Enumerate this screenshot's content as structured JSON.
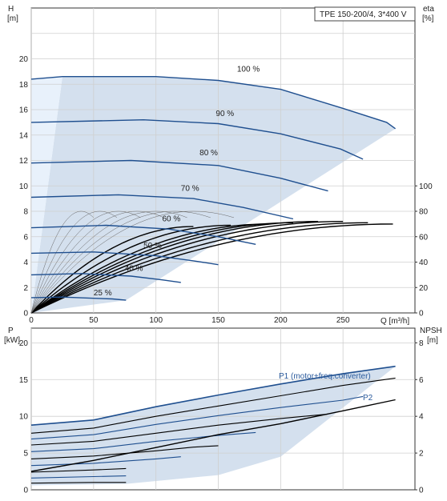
{
  "chart_data": [
    {
      "type": "line",
      "title": "TPE 150-200/4, 3*400 V",
      "xlabel": "Q [m³/h]",
      "ylabel_left": "H\n[m]",
      "ylabel_right": "eta\n[%]",
      "xlim": [
        0,
        300
      ],
      "ylim_left": [
        0,
        24
      ],
      "ylim_right_ticks": [
        0,
        20,
        40,
        60,
        80,
        100
      ],
      "x_ticks": [
        "0",
        "50",
        "100",
        "150",
        "200",
        "250"
      ],
      "y_ticks_left": [
        "0",
        "2",
        "4",
        "6",
        "8",
        "10",
        "12",
        "14",
        "16",
        "18",
        "20"
      ],
      "grid": true,
      "speed_curves": [
        {
          "label": "100 %",
          "points": [
            [
              0,
              18.4
            ],
            [
              25,
              18.6
            ],
            [
              100,
              18.6
            ],
            [
              150,
              18.3
            ],
            [
              200,
              17.6
            ],
            [
              250,
              16.1
            ],
            [
              285,
              15.0
            ],
            [
              292,
              14.5
            ]
          ]
        },
        {
          "label": "90 %",
          "points": [
            [
              0,
              15.0
            ],
            [
              90,
              15.2
            ],
            [
              150,
              14.9
            ],
            [
              200,
              14.1
            ],
            [
              248,
              12.9
            ],
            [
              266,
              12.1
            ]
          ]
        },
        {
          "label": "80 %",
          "points": [
            [
              0,
              11.8
            ],
            [
              80,
              12.0
            ],
            [
              150,
              11.6
            ],
            [
              200,
              10.6
            ],
            [
              238,
              9.6
            ]
          ]
        },
        {
          "label": "70 %",
          "points": [
            [
              0,
              9.1
            ],
            [
              70,
              9.3
            ],
            [
              130,
              9.0
            ],
            [
              170,
              8.3
            ],
            [
              210,
              7.4
            ]
          ]
        },
        {
          "label": "60 %",
          "points": [
            [
              0,
              6.7
            ],
            [
              60,
              6.9
            ],
            [
              110,
              6.6
            ],
            [
              150,
              6.0
            ],
            [
              180,
              5.4
            ]
          ]
        },
        {
          "label": "50 %",
          "points": [
            [
              0,
              4.7
            ],
            [
              50,
              4.8
            ],
            [
              100,
              4.5
            ],
            [
              130,
              4.1
            ],
            [
              150,
              3.8
            ]
          ]
        },
        {
          "label": "40 %",
          "points": [
            [
              0,
              3.0
            ],
            [
              40,
              3.1
            ],
            [
              80,
              2.9
            ],
            [
              105,
              2.6
            ],
            [
              120,
              2.4
            ]
          ]
        },
        {
          "label": "25 %",
          "points": [
            [
              0,
              1.2
            ],
            [
              25,
              1.25
            ],
            [
              50,
              1.15
            ],
            [
              65,
              1.1
            ],
            [
              76,
              1.0
            ]
          ]
        }
      ],
      "efficiency_curves_eta_percent": [
        {
          "peak_q": 290,
          "peak_eta": 70
        },
        {
          "peak_q": 270,
          "peak_eta": 71
        },
        {
          "peak_q": 250,
          "peak_eta": 72
        },
        {
          "peak_q": 230,
          "peak_eta": 72
        },
        {
          "peak_q": 210,
          "peak_eta": 71
        },
        {
          "peak_q": 190,
          "peak_eta": 70
        },
        {
          "peak_q": 160,
          "peak_eta": 69
        },
        {
          "peak_q": 130,
          "peak_eta": 68
        }
      ]
    },
    {
      "type": "line",
      "xlabel": "",
      "ylabel_left": "P\n[kW]",
      "ylabel_right": "NPSH\n[m]",
      "xlim": [
        0,
        300
      ],
      "ylim_left": [
        0,
        22
      ],
      "y_ticks_left": [
        "0",
        "5",
        "10",
        "15",
        "20"
      ],
      "y_ticks_right": [
        "0",
        "2",
        "4",
        "6",
        "8"
      ],
      "grid": true,
      "series_labels": [
        "P1 (motor+freq.converter)",
        "P2"
      ],
      "power_curves": [
        {
          "points": [
            [
              0,
              8.8
            ],
            [
              50,
              9.5
            ],
            [
              100,
              11.3
            ],
            [
              150,
              12.9
            ],
            [
              200,
              14.4
            ],
            [
              250,
              15.8
            ],
            [
              292,
              16.8
            ]
          ]
        },
        {
          "points": [
            [
              0,
              7.7
            ],
            [
              50,
              8.4
            ],
            [
              100,
              10.0
            ],
            [
              150,
              11.4
            ],
            [
              200,
              12.8
            ],
            [
              250,
              14.2
            ],
            [
              292,
              15.2
            ]
          ]
        },
        {
          "points": [
            [
              0,
              6.9
            ],
            [
              50,
              7.5
            ],
            [
              100,
              8.9
            ],
            [
              150,
              10.1
            ],
            [
              200,
              11.2
            ],
            [
              250,
              12.2
            ],
            [
              266,
              12.7
            ]
          ]
        },
        {
          "points": [
            [
              0,
              6.1
            ],
            [
              50,
              6.6
            ],
            [
              100,
              7.7
            ],
            [
              150,
              8.8
            ],
            [
              200,
              9.7
            ],
            [
              238,
              10.3
            ]
          ]
        },
        {
          "points": [
            [
              0,
              5.2
            ],
            [
              50,
              5.6
            ],
            [
              100,
              6.6
            ],
            [
              150,
              7.4
            ],
            [
              180,
              7.8
            ]
          ]
        },
        {
          "points": [
            [
              0,
              4.2
            ],
            [
              50,
              4.6
            ],
            [
              100,
              5.3
            ],
            [
              130,
              5.8
            ],
            [
              150,
              6.0
            ]
          ]
        },
        {
          "points": [
            [
              0,
              3.3
            ],
            [
              50,
              3.6
            ],
            [
              100,
              4.2
            ],
            [
              120,
              4.5
            ]
          ]
        },
        {
          "points": [
            [
              0,
              2.4
            ],
            [
              50,
              2.7
            ],
            [
              76,
              2.9
            ]
          ]
        },
        {
          "points": [
            [
              0,
              1.6
            ],
            [
              50,
              1.8
            ],
            [
              76,
              1.9
            ]
          ]
        },
        {
          "points": [
            [
              0,
              0.9
            ],
            [
              50,
              1.0
            ],
            [
              76,
              1.0
            ]
          ]
        }
      ],
      "npsh_curve_m": [
        [
          0,
          1.0
        ],
        [
          50,
          1.6
        ],
        [
          100,
          2.3
        ],
        [
          150,
          3.0
        ],
        [
          200,
          3.6
        ],
        [
          250,
          4.3
        ],
        [
          292,
          4.9
        ]
      ]
    }
  ]
}
